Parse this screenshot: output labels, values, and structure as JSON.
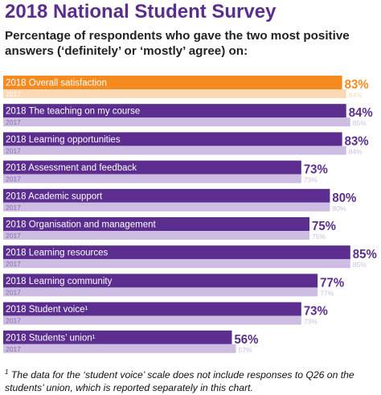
{
  "title": "2018 National Student Survey",
  "subtitle": "Percentage of respondents who gave the two most positive answers (‘definitely’ or ‘mostly’ agree) on:",
  "footnote": {
    "marker": "1",
    "text": "The data for the ‘student voice’ scale does not include responses to Q26 on the students’ union, which is reported separately in this chart."
  },
  "colors": {
    "highlight_2018": "#f58a1f",
    "highlight_2017": "#fbd9b6",
    "bar_2018": "#5b2d8e",
    "bar_2017": "#cdbde2",
    "label_2017_text": "#8a6fb0"
  },
  "chart_data": {
    "type": "bar",
    "orientation": "horizontal",
    "year_labels": [
      "2018",
      "2017"
    ],
    "categories": [
      "Overall satisfaction",
      "The teaching on my course",
      "Learning opportunities",
      "Assessment and feedback",
      "Academic support",
      "Organisation and management",
      "Learning resources",
      "Learning community",
      "Student voice¹",
      "Students’ union¹"
    ],
    "series": [
      {
        "name": "2018",
        "values": [
          83,
          84,
          83,
          73,
          80,
          75,
          85,
          77,
          73,
          56
        ]
      },
      {
        "name": "2017",
        "values": [
          84,
          85,
          84,
          73,
          80,
          75,
          85,
          77,
          73,
          57
        ]
      }
    ],
    "value_suffix": "%",
    "highlighted_category": "Overall satisfaction",
    "xlim": [
      0,
      100
    ],
    "grid": false,
    "legend": "none"
  }
}
